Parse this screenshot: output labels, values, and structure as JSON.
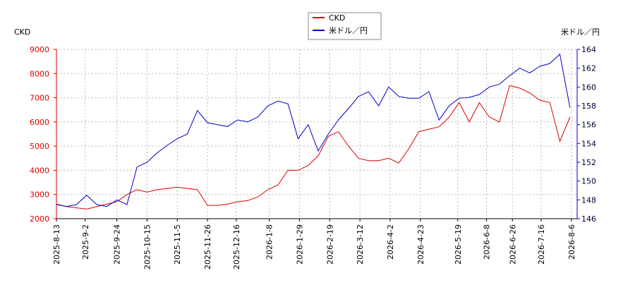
{
  "chart_data": {
    "type": "line",
    "y_label": "CKD",
    "y2_label": "米ドル／円",
    "x": [
      "2025-8-13",
      "2025-8-20",
      "2025-8-27",
      "2025-9-3",
      "2025-9-10",
      "2025-9-17",
      "2025-9-24",
      "2025-10-1",
      "2025-10-8",
      "2025-10-15",
      "2025-10-22",
      "2025-10-29",
      "2025-11-5",
      "2025-11-12",
      "2025-11-19",
      "2025-11-26",
      "2025-12-3",
      "2025-12-10",
      "2025-12-17",
      "2025-12-24",
      "2025-12-31",
      "2026-1-7",
      "2026-1-14",
      "2026-1-21",
      "2026-1-28",
      "2026-2-4",
      "2026-2-11",
      "2026-2-18",
      "2026-2-25",
      "2026-3-4",
      "2026-3-11",
      "2026-3-18",
      "2026-3-25",
      "2026-4-1",
      "2026-4-8",
      "2026-4-15",
      "2026-4-22",
      "2026-4-29",
      "2026-5-6",
      "2026-5-13",
      "2026-5-20",
      "2026-5-27",
      "2026-6-3",
      "2026-6-10",
      "2026-6-17",
      "2026-6-24",
      "2026-7-1",
      "2026-7-8",
      "2026-7-15",
      "2026-7-22",
      "2026-7-29",
      "2026-8-5"
    ],
    "xlim": [
      "2025-8-13",
      "2026-8-10"
    ],
    "xticks": [
      "2025-8-13",
      "2025-9-2",
      "2025-9-24",
      "2025-10-15",
      "2025-11-5",
      "2025-11-26",
      "2025-12-16",
      "2026-1-8",
      "2026-1-29",
      "2026-2-19",
      "2026-3-12",
      "2026-4-2",
      "2026-4-23",
      "2026-5-19",
      "2026-6-8",
      "2026-6-26",
      "2026-7-16",
      "2026-8-6"
    ],
    "ylim": [
      2000,
      9000
    ],
    "yticks": [
      2000,
      3000,
      4000,
      5000,
      6000,
      7000,
      8000,
      9000
    ],
    "y2lim": [
      146,
      164
    ],
    "y2ticks": [
      146,
      148,
      150,
      152,
      154,
      156,
      158,
      160,
      162,
      164
    ],
    "grid": true,
    "series": [
      {
        "name": "CKD",
        "color": "#dd0000",
        "values": [
          2600,
          2500,
          2450,
          2400,
          2500,
          2600,
          2700,
          3000,
          3200,
          3100,
          3200,
          3250,
          3300,
          3250,
          3200,
          2550,
          2550,
          2600,
          2700,
          2750,
          2900,
          3200,
          3400,
          4000,
          4000,
          4200,
          4600,
          5400,
          5600,
          5000,
          4500,
          4400,
          4400,
          4500,
          4300,
          4900,
          5600,
          5700,
          5800,
          6200,
          6800,
          6000,
          6800,
          6200,
          6000,
          7500,
          7400,
          7200,
          6900,
          6800,
          5200,
          6200
        ]
      },
      {
        "name": "米ドル／円",
        "color": "#0000cc",
        "axis": "y2",
        "values": [
          147.5,
          147.3,
          147.5,
          148.5,
          147.5,
          147.3,
          148.0,
          147.5,
          151.5,
          152.0,
          153.0,
          153.8,
          154.5,
          155.0,
          157.5,
          156.2,
          156.0,
          155.8,
          156.5,
          156.3,
          156.8,
          158.0,
          158.5,
          158.2,
          154.5,
          156.0,
          153.2,
          155.0,
          156.5,
          157.7,
          159.0,
          159.5,
          158.0,
          160.0,
          159.0,
          158.8,
          158.8,
          159.5,
          156.5,
          158.0,
          158.8,
          158.9,
          159.2,
          160.0,
          160.3,
          161.2,
          162.0,
          161.5,
          162.2,
          162.5,
          163.5,
          157.8
        ]
      }
    ]
  }
}
